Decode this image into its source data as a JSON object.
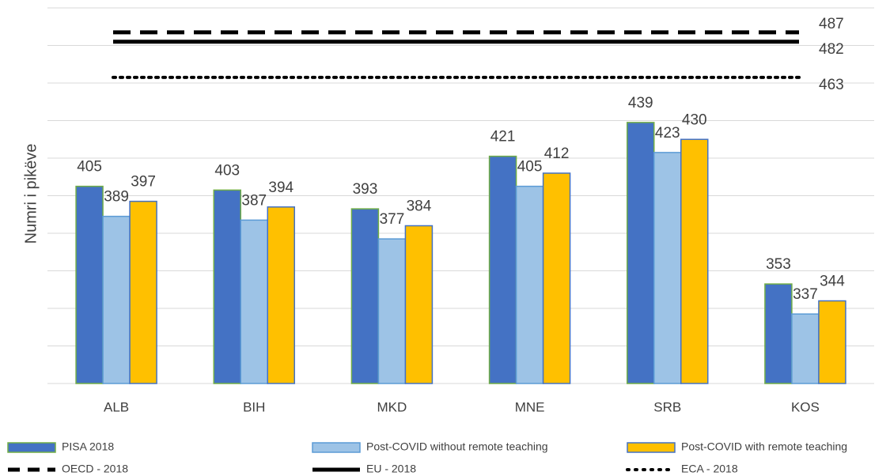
{
  "chart_data": {
    "type": "bar",
    "y_label": "Numri i pikëve",
    "categories": [
      "ALB",
      "BIH",
      "MKD",
      "MNE",
      "SRB",
      "KOS"
    ],
    "series": [
      {
        "name": "PISA 2018",
        "color": "#4472c4",
        "border": "#70ad47",
        "values": [
          405,
          403,
          393,
          421,
          439,
          353
        ]
      },
      {
        "name": "Post-COVID without remote teaching",
        "color": "#9dc3e6",
        "border": "#5b9bd5",
        "values": [
          389,
          387,
          377,
          405,
          423,
          337
        ]
      },
      {
        "name": "Post-COVID with remote teaching",
        "color": "#ffc000",
        "border": "#4472c4",
        "values": [
          397,
          394,
          384,
          412,
          430,
          344
        ]
      }
    ],
    "reference_lines": [
      {
        "name": "OECD - 2018",
        "value": 487,
        "style": "dashed",
        "color": "#000000"
      },
      {
        "name": "EU - 2018",
        "value": 482,
        "style": "solid",
        "color": "#000000"
      },
      {
        "name": "ECA - 2018",
        "value": 463,
        "style": "dotted",
        "color": "#000000"
      }
    ],
    "ylim": [
      300,
      500
    ],
    "yticks": [
      300,
      320,
      340,
      360,
      380,
      400,
      420,
      440,
      460,
      480,
      500
    ],
    "grid": true
  }
}
